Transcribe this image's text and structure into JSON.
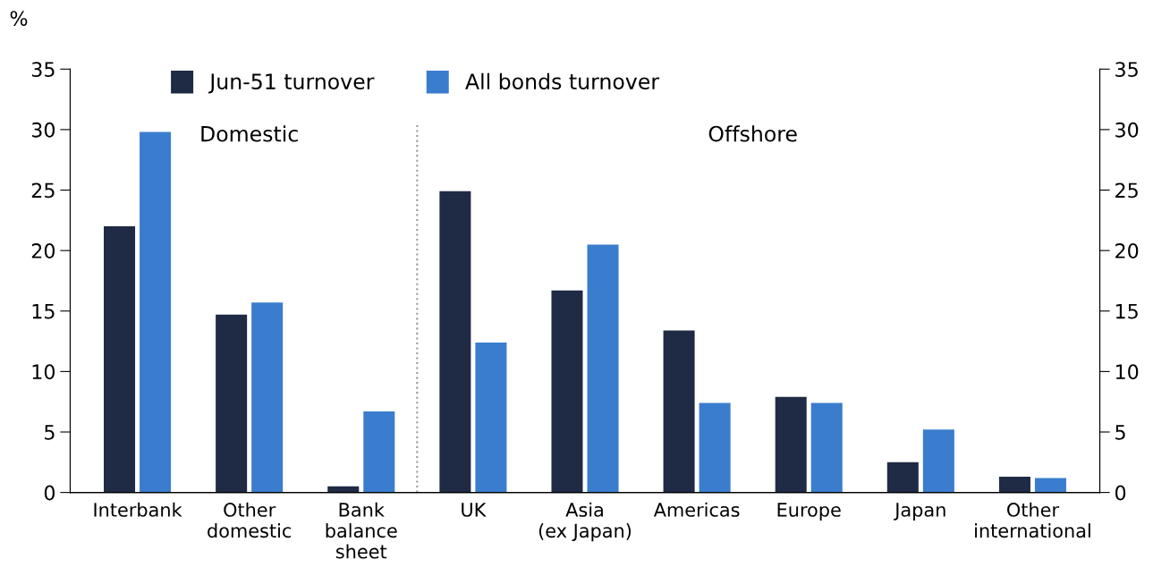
{
  "chart_data": {
    "type": "bar",
    "ylabel": "%",
    "categories": [
      "Interbank",
      "Other\ndomestic",
      "Bank\nbalance\nsheet",
      "UK",
      "Asia\n(ex Japan)",
      "Americas",
      "Europe",
      "Japan",
      "Other\ninternational"
    ],
    "series": [
      {
        "name": "Jun-51 turnover",
        "color": "#1f2a44",
        "values": [
          22.0,
          14.7,
          0.5,
          24.9,
          16.7,
          13.4,
          7.9,
          2.5,
          1.3
        ]
      },
      {
        "name": "All bonds turnover",
        "color": "#3a7dce",
        "values": [
          29.8,
          15.7,
          6.7,
          12.4,
          20.5,
          7.4,
          7.4,
          5.2,
          1.2
        ]
      }
    ],
    "ylim": [
      0,
      35
    ],
    "yticks": [
      0,
      5,
      10,
      15,
      20,
      25,
      30,
      35
    ],
    "y2lim": [
      0,
      35
    ],
    "y2ticks": [
      0,
      5,
      10,
      15,
      20,
      25,
      30,
      35
    ],
    "annotations": [
      "Domestic",
      "Offshore"
    ],
    "legend": "top left",
    "grid": false
  }
}
